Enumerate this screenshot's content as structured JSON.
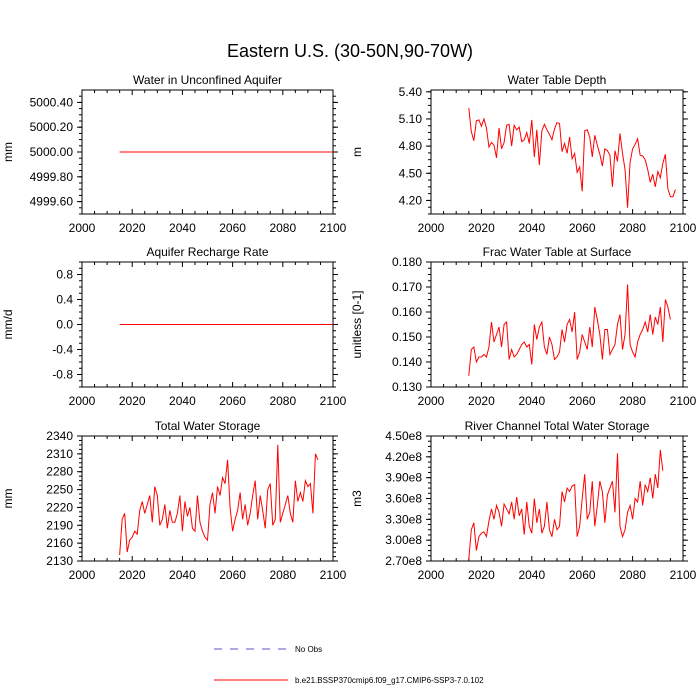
{
  "figure_title": "Eastern U.S. (30-50N,90-70W)",
  "legend": [
    {
      "label": "No Obs",
      "style": "dashed",
      "color": "#5a4fd0"
    },
    {
      "label": "b.e21.BSSP370cmip6.f09_g17.CMIP6-SSP3-7.0.102",
      "style": "solid",
      "color": "#ff0000"
    }
  ],
  "colors": {
    "series": "#ff0000",
    "axis": "#000000"
  },
  "chart_data": [
    {
      "type": "line",
      "title": "Water in Unconfined Aquifer",
      "ylabel": "mm",
      "xlabel": "",
      "xlim": [
        2000,
        2100
      ],
      "ylim": [
        4999.5,
        5000.5
      ],
      "xticks": [
        2000,
        2020,
        2040,
        2060,
        2080,
        2100
      ],
      "yticks": [
        4999.6,
        4999.8,
        5000.0,
        5000.2,
        5000.4
      ],
      "ytick_labels": [
        "4999.60",
        "4999.80",
        "5000.00",
        "5000.20",
        "5000.40"
      ],
      "series": [
        {
          "name": "b.e21.BSSP370cmip6.f09_g17.CMIP6-SSP3-7.0.102",
          "start_year": 2015,
          "values": [
            5000.0,
            5000.0,
            5000.0,
            5000.0,
            5000.0,
            5000.0,
            5000.0,
            5000.0,
            5000.0,
            5000.0,
            5000.0,
            5000.0,
            5000.0,
            5000.0,
            5000.0,
            5000.0,
            5000.0,
            5000.0,
            5000.0,
            5000.0,
            5000.0,
            5000.0,
            5000.0,
            5000.0,
            5000.0,
            5000.0,
            5000.0,
            5000.0,
            5000.0,
            5000.0,
            5000.0,
            5000.0,
            5000.0,
            5000.0,
            5000.0,
            5000.0,
            5000.0,
            5000.0,
            5000.0,
            5000.0,
            5000.0,
            5000.0,
            5000.0,
            5000.0,
            5000.0,
            5000.0,
            5000.0,
            5000.0,
            5000.0,
            5000.0,
            5000.0,
            5000.0,
            5000.0,
            5000.0,
            5000.0,
            5000.0,
            5000.0,
            5000.0,
            5000.0,
            5000.0,
            5000.0,
            5000.0,
            5000.0,
            5000.0,
            5000.0,
            5000.0,
            5000.0,
            5000.0,
            5000.0,
            5000.0,
            5000.0,
            5000.0,
            5000.0,
            5000.0,
            5000.0,
            5000.0,
            5000.0,
            5000.0,
            5000.0,
            5000.0,
            5000.0,
            5000.0,
            5000.0,
            5000.0,
            5000.0,
            5000.0
          ]
        }
      ]
    },
    {
      "type": "line",
      "title": "Water Table Depth",
      "ylabel": "m",
      "xlabel": "",
      "xlim": [
        2000,
        2100
      ],
      "ylim": [
        4.05,
        5.42
      ],
      "xticks": [
        2000,
        2020,
        2040,
        2060,
        2080,
        2100
      ],
      "yticks": [
        4.2,
        4.5,
        4.8,
        5.1,
        5.4
      ],
      "ytick_labels": [
        "4.20",
        "4.50",
        "4.80",
        "5.10",
        "5.40"
      ],
      "series": [
        {
          "name": "b.e21.BSSP370cmip6.f09_g17.CMIP6-SSP3-7.0.102",
          "start_year": 2015,
          "values": [
            5.22,
            4.96,
            4.86,
            5.08,
            5.09,
            5.02,
            5.1,
            5.0,
            4.79,
            4.84,
            4.81,
            4.67,
            5.0,
            4.77,
            4.84,
            5.03,
            5.04,
            4.8,
            5.03,
            4.98,
            5.01,
            4.85,
            4.87,
            4.95,
            4.83,
            5.09,
            4.68,
            4.98,
            4.59,
            4.97,
            5.04,
            4.98,
            4.93,
            4.87,
            4.99,
            5.06,
            5.05,
            4.74,
            4.83,
            4.72,
            4.9,
            4.66,
            4.72,
            4.51,
            4.57,
            4.3,
            4.97,
            4.98,
            4.9,
            4.68,
            4.92,
            4.81,
            4.71,
            4.58,
            4.77,
            4.75,
            4.7,
            4.35,
            4.75,
            4.63,
            4.94,
            4.72,
            4.54,
            4.12,
            4.62,
            4.77,
            4.82,
            4.88,
            4.7,
            4.69,
            4.65,
            4.54,
            4.4,
            4.49,
            4.35,
            4.52,
            4.45,
            4.61,
            4.71,
            4.33,
            4.24,
            4.24,
            4.32
          ]
        }
      ]
    },
    {
      "type": "line",
      "title": "Aquifer Recharge Rate",
      "ylabel": "mm/d",
      "xlabel": "",
      "xlim": [
        2000,
        2100
      ],
      "ylim": [
        -1.0,
        1.0
      ],
      "xticks": [
        2000,
        2020,
        2040,
        2060,
        2080,
        2100
      ],
      "yticks": [
        -0.8,
        -0.4,
        0.0,
        0.4,
        0.8
      ],
      "ytick_labels": [
        "-0.8",
        "-0.4",
        "0.0",
        "0.4",
        "0.8"
      ],
      "series": [
        {
          "name": "b.e21.BSSP370cmip6.f09_g17.CMIP6-SSP3-7.0.102",
          "start_year": 2015,
          "values": [
            0.0,
            0.0,
            0.0,
            0.0,
            0.0,
            0.0,
            0.0,
            0.0,
            0.0,
            0.0,
            0.0,
            0.0,
            0.0,
            0.0,
            0.0,
            0.0,
            0.0,
            0.0,
            0.0,
            0.0,
            0.0,
            0.0,
            0.0,
            0.0,
            0.0,
            0.0,
            0.0,
            0.0,
            0.0,
            0.0,
            0.0,
            0.0,
            0.0,
            0.0,
            0.0,
            0.0,
            0.0,
            0.0,
            0.0,
            0.0,
            0.0,
            0.0,
            0.0,
            0.0,
            0.0,
            0.0,
            0.0,
            0.0,
            0.0,
            0.0,
            0.0,
            0.0,
            0.0,
            0.0,
            0.0,
            0.0,
            0.0,
            0.0,
            0.0,
            0.0,
            0.0,
            0.0,
            0.0,
            0.0,
            0.0,
            0.0,
            0.0,
            0.0,
            0.0,
            0.0,
            0.0,
            0.0,
            0.0,
            0.0,
            0.0,
            0.0,
            0.0,
            0.0,
            0.0,
            0.0,
            0.0,
            0.0,
            0.0,
            0.0,
            0.0,
            0.0
          ]
        }
      ]
    },
    {
      "type": "line",
      "title": "Frac Water Table at Surface",
      "ylabel": "unitless [0-1]",
      "xlabel": "",
      "xlim": [
        2000,
        2100
      ],
      "ylim": [
        0.13,
        0.18
      ],
      "xticks": [
        2000,
        2020,
        2040,
        2060,
        2080,
        2100
      ],
      "yticks": [
        0.13,
        0.14,
        0.15,
        0.16,
        0.17,
        0.18
      ],
      "ytick_labels": [
        "0.130",
        "0.140",
        "0.150",
        "0.160",
        "0.170",
        "0.180"
      ],
      "series": [
        {
          "name": "b.e21.BSSP370cmip6.f09_g17.CMIP6-SSP3-7.0.102",
          "start_year": 2015,
          "values": [
            0.1345,
            0.145,
            0.146,
            0.14,
            0.142,
            0.142,
            0.143,
            0.142,
            0.146,
            0.156,
            0.148,
            0.151,
            0.154,
            0.146,
            0.155,
            0.156,
            0.141,
            0.145,
            0.142,
            0.143,
            0.145,
            0.147,
            0.148,
            0.146,
            0.147,
            0.139,
            0.155,
            0.149,
            0.154,
            0.156,
            0.146,
            0.143,
            0.15,
            0.147,
            0.141,
            0.142,
            0.144,
            0.153,
            0.148,
            0.155,
            0.157,
            0.152,
            0.16,
            0.141,
            0.144,
            0.151,
            0.148,
            0.145,
            0.154,
            0.146,
            0.162,
            0.157,
            0.151,
            0.141,
            0.153,
            0.153,
            0.143,
            0.145,
            0.147,
            0.155,
            0.159,
            0.145,
            0.151,
            0.171,
            0.147,
            0.144,
            0.142,
            0.148,
            0.151,
            0.153,
            0.156,
            0.152,
            0.159,
            0.151,
            0.158,
            0.155,
            0.162,
            0.148,
            0.165,
            0.162,
            0.157
          ]
        }
      ]
    },
    {
      "type": "line",
      "title": "Total Water Storage",
      "ylabel": "mm",
      "xlabel": "",
      "xlim": [
        2000,
        2100
      ],
      "ylim": [
        2130,
        2340
      ],
      "xticks": [
        2000,
        2020,
        2040,
        2060,
        2080,
        2100
      ],
      "yticks": [
        2130,
        2160,
        2190,
        2220,
        2250,
        2280,
        2310,
        2340
      ],
      "ytick_labels": [
        "2130",
        "2160",
        "2190",
        "2220",
        "2250",
        "2280",
        "2310",
        "2340"
      ],
      "series": [
        {
          "name": "b.e21.BSSP370cmip6.f09_g17.CMIP6-SSP3-7.0.102",
          "start_year": 2015,
          "values": [
            2140,
            2200,
            2210,
            2145,
            2165,
            2170,
            2180,
            2175,
            2215,
            2230,
            2210,
            2225,
            2240,
            2195,
            2255,
            2240,
            2190,
            2200,
            2225,
            2185,
            2215,
            2195,
            2195,
            2210,
            2240,
            2180,
            2230,
            2205,
            2220,
            2185,
            2180,
            2240,
            2195,
            2180,
            2170,
            2165,
            2225,
            2245,
            2210,
            2255,
            2240,
            2270,
            2260,
            2300,
            2220,
            2180,
            2200,
            2215,
            2245,
            2200,
            2225,
            2190,
            2210,
            2240,
            2265,
            2200,
            2240,
            2215,
            2185,
            2250,
            2260,
            2190,
            2200,
            2325,
            2195,
            2210,
            2225,
            2240,
            2210,
            2195,
            2265,
            2230,
            2245,
            2230,
            2265,
            2255,
            2260,
            2210,
            2310,
            2300
          ]
        }
      ]
    },
    {
      "type": "line",
      "title": "River Channel Total Water Storage",
      "ylabel": "m3",
      "xlabel": "",
      "xlim": [
        2000,
        2100
      ],
      "ylim": [
        270000000.0,
        450000000.0
      ],
      "xticks": [
        2000,
        2020,
        2040,
        2060,
        2080,
        2100
      ],
      "yticks": [
        270000000.0,
        300000000.0,
        330000000.0,
        360000000.0,
        390000000.0,
        420000000.0,
        450000000.0
      ],
      "ytick_labels": [
        "2.70e8",
        "3.00e8",
        "3.30e8",
        "3.60e8",
        "3.90e8",
        "4.20e8",
        "4.50e8"
      ],
      "series": [
        {
          "name": "b.e21.BSSP370cmip6.f09_g17.CMIP6-SSP3-7.0.102",
          "start_year": 2015,
          "values": [
            272000000.0,
            315000000.0,
            325000000.0,
            285000000.0,
            305000000.0,
            310000000.0,
            312000000.0,
            305000000.0,
            328000000.0,
            345000000.0,
            330000000.0,
            350000000.0,
            340000000.0,
            320000000.0,
            352000000.0,
            345000000.0,
            338000000.0,
            355000000.0,
            330000000.0,
            362000000.0,
            335000000.0,
            345000000.0,
            308000000.0,
            355000000.0,
            320000000.0,
            310000000.0,
            360000000.0,
            325000000.0,
            345000000.0,
            310000000.0,
            320000000.0,
            355000000.0,
            315000000.0,
            305000000.0,
            330000000.0,
            315000000.0,
            320000000.0,
            370000000.0,
            355000000.0,
            375000000.0,
            370000000.0,
            378000000.0,
            380000000.0,
            305000000.0,
            320000000.0,
            360000000.0,
            395000000.0,
            330000000.0,
            340000000.0,
            385000000.0,
            320000000.0,
            350000000.0,
            385000000.0,
            370000000.0,
            325000000.0,
            365000000.0,
            375000000.0,
            385000000.0,
            340000000.0,
            425000000.0,
            320000000.0,
            305000000.0,
            315000000.0,
            340000000.0,
            350000000.0,
            330000000.0,
            360000000.0,
            355000000.0,
            385000000.0,
            350000000.0,
            380000000.0,
            370000000.0,
            390000000.0,
            360000000.0,
            395000000.0,
            375000000.0,
            430000000.0,
            400000000.0
          ]
        }
      ]
    }
  ]
}
